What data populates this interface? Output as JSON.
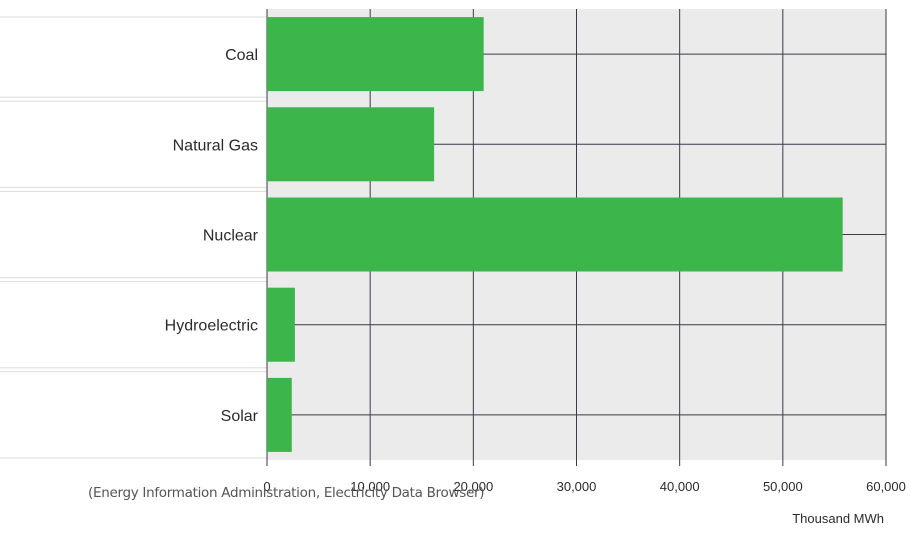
{
  "chart_data": {
    "type": "bar",
    "orientation": "horizontal",
    "categories": [
      "Coal",
      "Natural Gas",
      "Nuclear",
      "Hydroelectric",
      "Solar"
    ],
    "values": [
      21000,
      16200,
      55800,
      2700,
      2400
    ],
    "xlim": [
      0,
      60000
    ],
    "xticks": [
      0,
      10000,
      20000,
      30000,
      40000,
      50000,
      60000
    ],
    "xtick_labels": [
      "0",
      "10,000",
      "20,000",
      "30,000",
      "40,000",
      "50,000",
      "60,000"
    ],
    "xlabel": "Thousand MWh",
    "grid": true,
    "colors": {
      "bar": "#3cb54a",
      "plot_background": "#ebebeb",
      "grid": "#3a3a4a",
      "row_separator": "#dddddd"
    }
  },
  "source": "(Energy Information Administration, Electricity Data Browser)"
}
